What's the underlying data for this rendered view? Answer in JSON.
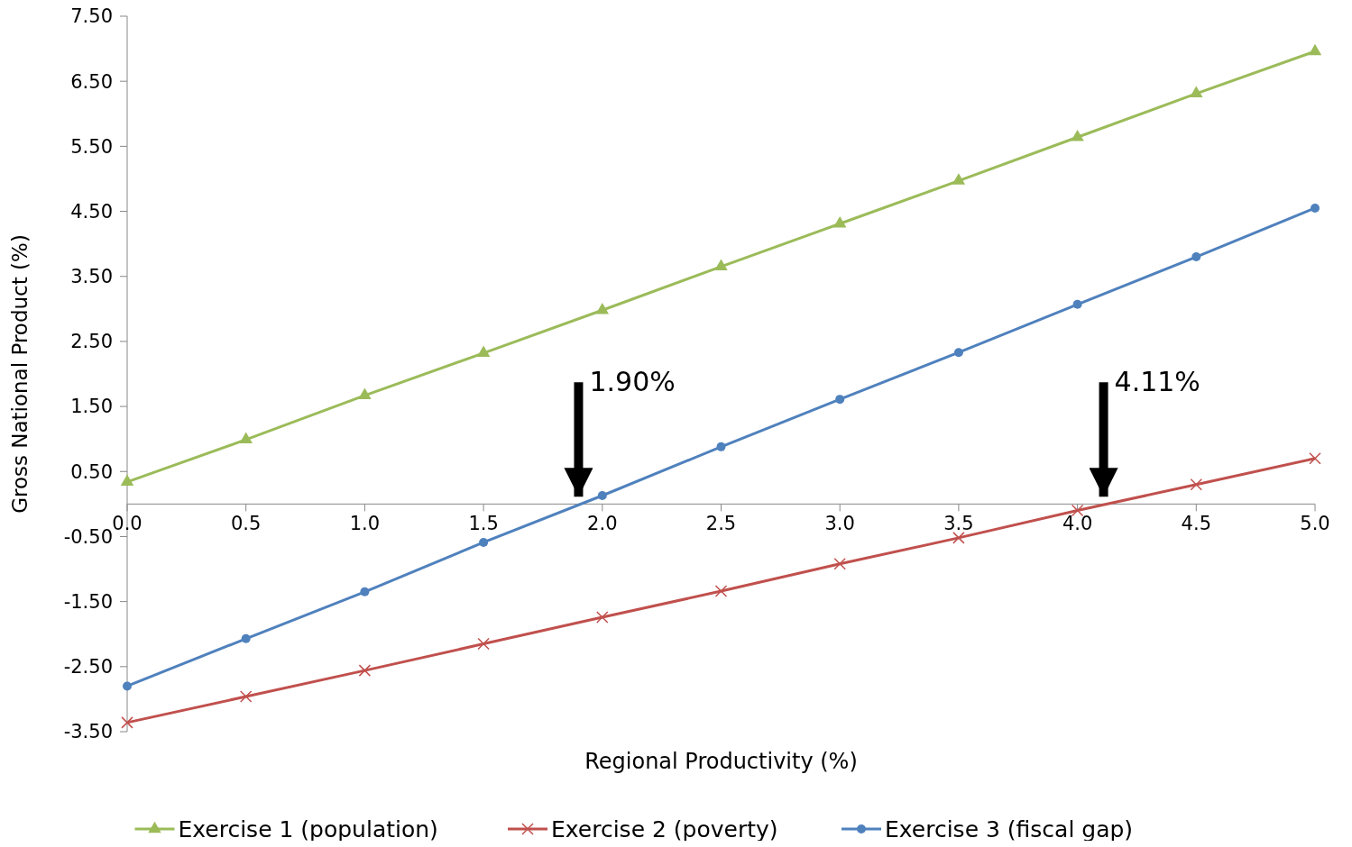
{
  "chart_data": {
    "type": "line",
    "xlabel": "Regional Productivity (%)",
    "ylabel": "Gross National Product (%)",
    "xlim": [
      0,
      5
    ],
    "xticks": [
      {
        "value": 0,
        "label": "0.0"
      },
      0.5,
      {
        "value": 1,
        "label": "1.0"
      },
      1.5,
      {
        "value": 2,
        "label": "2.0"
      },
      2.5,
      {
        "value": 3,
        "label": "3.0"
      },
      3.5,
      {
        "value": 4,
        "label": "4.0"
      },
      4.5,
      {
        "value": 5,
        "label": "5.0"
      }
    ],
    "ylim": [
      -3.5,
      7.5
    ],
    "yticks": [
      {
        "value": -3.5,
        "label": "-3.50"
      },
      {
        "value": -2.5,
        "label": "-2.50"
      },
      {
        "value": -1.5,
        "label": "-1.50"
      },
      {
        "value": -0.5,
        "label": "-0.50"
      },
      {
        "value": 0.5,
        "label": "0.50"
      },
      {
        "value": 1.5,
        "label": "1.50"
      },
      {
        "value": 2.5,
        "label": "2.50"
      },
      {
        "value": 3.5,
        "label": "3.50"
      },
      {
        "value": 4.5,
        "label": "4.50"
      },
      {
        "value": 5.5,
        "label": "5.50"
      },
      {
        "value": 6.5,
        "label": "6.50"
      },
      {
        "value": 7.5,
        "label": "7.50"
      }
    ],
    "x": [
      0,
      0.5,
      1,
      1.5,
      2,
      2.5,
      3,
      3.5,
      4,
      4.5,
      5
    ],
    "series": [
      {
        "name": "Exercise 1 (population)",
        "color": "#9bbb59",
        "marker": "triangle",
        "values": [
          0.34,
          0.99,
          1.67,
          2.32,
          2.98,
          3.65,
          4.31,
          4.97,
          5.64,
          6.31,
          6.96
        ]
      },
      {
        "name": "Exercise 2 (poverty)",
        "color": "#c0504d",
        "marker": "cross",
        "values": [
          -3.36,
          -2.96,
          -2.56,
          -2.15,
          -1.74,
          -1.34,
          -0.92,
          -0.52,
          -0.1,
          0.3,
          0.7
        ]
      },
      {
        "name": "Exercise 3 (fiscal gap)",
        "color": "#4f81bd",
        "marker": "circle",
        "values": [
          -2.8,
          -2.07,
          -1.35,
          -0.59,
          0.13,
          0.88,
          1.61,
          2.33,
          3.07,
          3.8,
          4.55
        ]
      }
    ],
    "annotations": [
      {
        "text": "1.90%",
        "x": 1.9,
        "y": 0
      },
      {
        "text": "4.11%",
        "x": 4.11,
        "y": 0
      }
    ],
    "grid": false,
    "legend": "bottom",
    "line_style": "solid"
  }
}
